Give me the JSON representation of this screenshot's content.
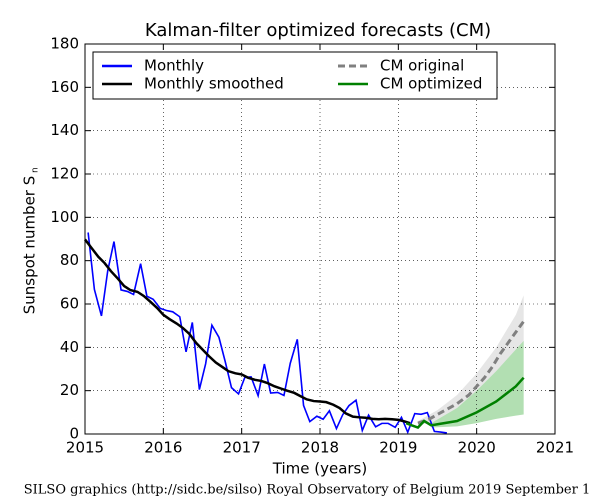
{
  "chart_data": {
    "type": "line",
    "title": "Kalman-filter optimized forecasts (CM)",
    "xlabel": "Time (years)",
    "ylabel": "Sunspot number S",
    "ylabel_subscript": "n",
    "footer": "SILSO graphics (http://sidc.be/silso)  Royal Observatory of Belgium  2019 September 1",
    "xlim": [
      2015,
      2021
    ],
    "xticks": [
      2015,
      2016,
      2017,
      2018,
      2019,
      2020,
      2021
    ],
    "ylim": [
      0,
      180
    ],
    "yticks": [
      0,
      20,
      40,
      60,
      80,
      100,
      120,
      140,
      160,
      180
    ],
    "grid": true,
    "legend": "upper center",
    "series": [
      {
        "name": "Monthly",
        "color": "#0000ff",
        "x": [
          2015.04,
          2015.12,
          2015.21,
          2015.29,
          2015.37,
          2015.46,
          2015.54,
          2015.62,
          2015.71,
          2015.79,
          2015.87,
          2015.96,
          2016.04,
          2016.12,
          2016.21,
          2016.29,
          2016.37,
          2016.46,
          2016.54,
          2016.62,
          2016.71,
          2016.79,
          2016.87,
          2016.96,
          2017.04,
          2017.12,
          2017.21,
          2017.29,
          2017.37,
          2017.46,
          2017.54,
          2017.62,
          2017.71,
          2017.79,
          2017.87,
          2017.96,
          2018.04,
          2018.12,
          2018.21,
          2018.29,
          2018.37,
          2018.46,
          2018.54,
          2018.62,
          2018.71,
          2018.79,
          2018.87,
          2018.96,
          2019.04,
          2019.12,
          2019.21,
          2019.29,
          2019.37,
          2019.46,
          2019.54,
          2019.62
        ],
        "values": [
          93.0,
          66.7,
          54.5,
          75.3,
          88.8,
          66.5,
          65.8,
          64.4,
          78.6,
          63.6,
          62.2,
          58.0,
          57.0,
          56.4,
          54.1,
          37.9,
          51.5,
          20.5,
          32.4,
          50.2,
          44.6,
          33.4,
          21.4,
          18.5,
          26.1,
          26.4,
          17.7,
          32.3,
          18.9,
          19.2,
          17.8,
          32.6,
          43.7,
          13.2,
          5.7,
          8.2,
          6.8,
          10.7,
          2.5,
          8.9,
          13.1,
          15.6,
          1.6,
          8.7,
          3.3,
          4.9,
          4.9,
          3.1,
          7.7,
          0.8,
          9.4,
          9.1,
          9.9,
          1.2,
          0.9,
          0.5
        ]
      },
      {
        "name": "Monthly smoothed",
        "color": "#000000",
        "x": [
          2015.0,
          2015.08,
          2015.17,
          2015.25,
          2015.33,
          2015.42,
          2015.5,
          2015.58,
          2015.67,
          2015.75,
          2015.83,
          2015.92,
          2016.0,
          2016.08,
          2016.17,
          2016.25,
          2016.33,
          2016.42,
          2016.5,
          2016.58,
          2016.67,
          2016.75,
          2016.83,
          2016.92,
          2017.0,
          2017.08,
          2017.17,
          2017.25,
          2017.33,
          2017.42,
          2017.5,
          2017.58,
          2017.67,
          2017.75,
          2017.83,
          2017.92,
          2018.0,
          2018.08,
          2018.17,
          2018.25,
          2018.33,
          2018.42,
          2018.5,
          2018.58,
          2018.67,
          2018.75,
          2018.83,
          2018.92,
          2019.0,
          2019.08,
          2019.15
        ],
        "values": [
          89.8,
          86.0,
          81.8,
          78.9,
          75.2,
          71.7,
          68.3,
          66.4,
          65.6,
          63.7,
          61.2,
          58.2,
          55.0,
          53.0,
          51.0,
          48.9,
          46.3,
          42.0,
          39.0,
          36.0,
          33.0,
          31.0,
          29.0,
          28.0,
          27.5,
          26.0,
          25.0,
          24.5,
          23.5,
          22.0,
          21.0,
          20.0,
          19.0,
          17.5,
          16.0,
          15.2,
          15.0,
          14.7,
          13.5,
          12.0,
          9.5,
          8.0,
          7.7,
          7.5,
          7.0,
          6.8,
          7.0,
          6.8,
          6.5,
          5.8,
          5.0
        ]
      },
      {
        "name": "CM original",
        "color": "#808080",
        "dash": true,
        "x": [
          2019.25,
          2019.4,
          2019.5,
          2019.6,
          2019.75,
          2019.9,
          2020.0,
          2020.1,
          2020.2,
          2020.3,
          2020.4,
          2020.5,
          2020.6
        ],
        "values": [
          5,
          7,
          9,
          11,
          14,
          18,
          22,
          26,
          31,
          37,
          42,
          47,
          52
        ]
      },
      {
        "name": "CM optimized",
        "color": "#008000",
        "x": [
          2019.1,
          2019.17,
          2019.25,
          2019.33,
          2019.42,
          2019.5,
          2019.75,
          2020.0,
          2020.25,
          2020.5,
          2020.6
        ],
        "values": [
          5,
          4,
          3,
          6,
          4,
          4.5,
          6,
          10,
          15,
          22,
          26
        ]
      }
    ],
    "bands": [
      {
        "color": "#e6e6e6",
        "x": [
          2019.25,
          2019.5,
          2019.75,
          2020.0,
          2020.25,
          2020.5,
          2020.6
        ],
        "upper": [
          6,
          11,
          18,
          28,
          40,
          55,
          64
        ],
        "lower": [
          4,
          6,
          9,
          14,
          22,
          33,
          40
        ]
      },
      {
        "color": "#b2dfb2",
        "x": [
          2019.42,
          2019.75,
          2020.0,
          2020.25,
          2020.5,
          2020.6
        ],
        "upper": [
          5,
          12,
          20,
          29,
          39,
          43
        ],
        "lower": [
          3,
          3.5,
          5,
          7,
          8.5,
          9
        ]
      }
    ]
  }
}
